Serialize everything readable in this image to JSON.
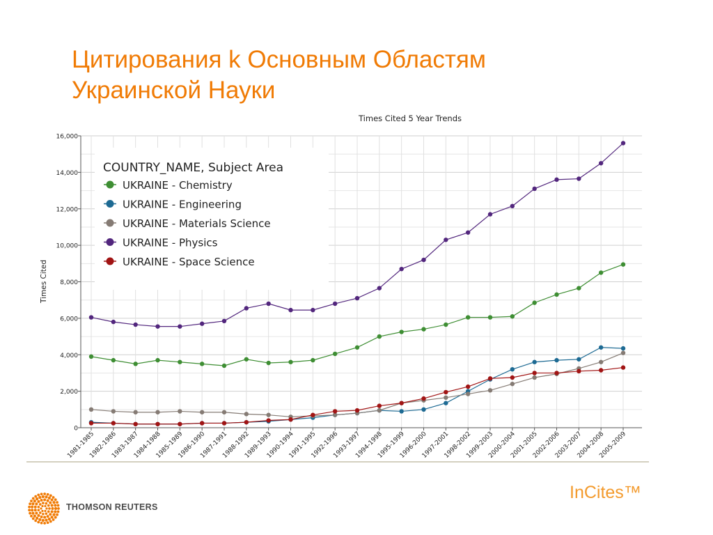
{
  "slide": {
    "title_line1": "Цитирования k Основным Областям",
    "title_line2": "Украинской Науки",
    "brand": "THOMSON REUTERS",
    "product": "InCites™"
  },
  "colors": {
    "title": "#f07b05",
    "product": "#f39a2c"
  },
  "chart_data": {
    "type": "line",
    "title": "Times Cited 5 Year Trends",
    "xlabel": "",
    "ylabel": "Times Cited",
    "ylim": [
      0,
      16000
    ],
    "yticks": [
      0,
      2000,
      4000,
      6000,
      8000,
      10000,
      12000,
      14000,
      16000
    ],
    "ytick_labels": [
      "0",
      "2,000",
      "4,000",
      "6,000",
      "8,000",
      "10,000",
      "12,000",
      "14,000",
      "16,000"
    ],
    "grid": true,
    "legend_title": "COUNTRY_NAME, Subject Area",
    "legend_position": "top-left",
    "categories": [
      "1981-1985",
      "1982-1986",
      "1983-1987",
      "1984-1988",
      "1985-1989",
      "1986-1990",
      "1987-1991",
      "1988-1992",
      "1989-1993",
      "1990-1994",
      "1991-1995",
      "1992-1996",
      "1993-1997",
      "1994-1998",
      "1995-1999",
      "1996-2000",
      "1997-2001",
      "1998-2002",
      "1999-2003",
      "2000-2004",
      "2001-2005",
      "2002-2006",
      "2003-2007",
      "2004-2008",
      "2005-2009"
    ],
    "series": [
      {
        "name": "UKRAINE - Chemistry",
        "color": "#3e8e33",
        "values": [
          3900,
          3700,
          3500,
          3700,
          3600,
          3500,
          3400,
          3750,
          3550,
          3600,
          3700,
          4050,
          4400,
          5000,
          5250,
          5400,
          5650,
          6050,
          6050,
          6100,
          6850,
          7300,
          7650,
          8500,
          8950
        ]
      },
      {
        "name": "UKRAINE - Engineering",
        "color": "#1d6a93",
        "values": [
          300,
          250,
          200,
          200,
          200,
          250,
          250,
          300,
          350,
          450,
          550,
          700,
          800,
          950,
          900,
          1000,
          1350,
          2000,
          2650,
          3200,
          3600,
          3700,
          3750,
          4400,
          4350
        ]
      },
      {
        "name": "UKRAINE - Materials Science",
        "color": "#857b74",
        "values": [
          1000,
          900,
          850,
          850,
          900,
          850,
          850,
          750,
          700,
          600,
          650,
          700,
          800,
          950,
          1350,
          1500,
          1650,
          1850,
          2050,
          2400,
          2750,
          2950,
          3250,
          3600,
          4100
        ]
      },
      {
        "name": "UKRAINE - Physics",
        "color": "#52267d",
        "values": [
          6050,
          5800,
          5650,
          5550,
          5550,
          5700,
          5850,
          6550,
          6800,
          6450,
          6450,
          6800,
          7100,
          7650,
          8700,
          9200,
          10300,
          10700,
          11700,
          12150,
          13100,
          13600,
          13650,
          14500,
          15600
        ]
      },
      {
        "name": "UKRAINE - Space Science",
        "color": "#a11414",
        "values": [
          250,
          250,
          200,
          200,
          200,
          250,
          250,
          300,
          400,
          450,
          700,
          900,
          950,
          1200,
          1350,
          1600,
          1950,
          2250,
          2700,
          2750,
          3000,
          3000,
          3100,
          3150,
          3300
        ]
      }
    ]
  }
}
